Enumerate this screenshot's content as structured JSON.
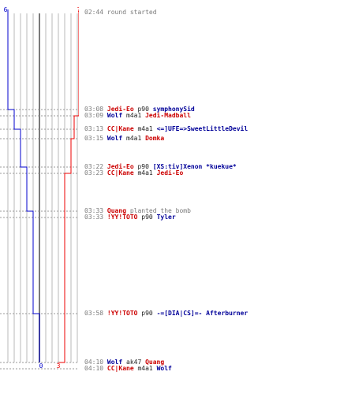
{
  "colors": {
    "red": "#ee0000",
    "blue": "#0000cc",
    "grid": "#b8b8b8",
    "center": "#7a7a7a",
    "dash": "#999999"
  },
  "start_scores": {
    "left": "6",
    "right": "7"
  },
  "end_scores": {
    "left": "0",
    "right": "3"
  },
  "events": [
    {
      "time": "02:44",
      "parts": [
        {
          "text": "round started",
          "cls": "c-gray"
        }
      ]
    },
    {
      "time": "03:08",
      "parts": [
        {
          "text": "Jedi-Eo",
          "cls": "c-red p"
        },
        {
          "text": "p90",
          "cls": "c-black"
        },
        {
          "text": "symphonySid",
          "cls": "c-blue p"
        }
      ]
    },
    {
      "time": "03:09",
      "parts": [
        {
          "text": "Wolf",
          "cls": "c-blue p"
        },
        {
          "text": "m4a1",
          "cls": "c-black"
        },
        {
          "text": "Jedi-Madball",
          "cls": "c-red p"
        }
      ]
    },
    {
      "time": "03:13",
      "parts": [
        {
          "text": "CC|Kane",
          "cls": "c-red p"
        },
        {
          "text": "m4a1",
          "cls": "c-black"
        },
        {
          "text": "<=]UFE=>SweetLittleDevil",
          "cls": "c-blue p"
        }
      ]
    },
    {
      "time": "03:15",
      "parts": [
        {
          "text": "Wolf",
          "cls": "c-blue p"
        },
        {
          "text": "m4a1",
          "cls": "c-black"
        },
        {
          "text": "Domka",
          "cls": "c-red p"
        }
      ]
    },
    {
      "time": "03:22",
      "parts": [
        {
          "text": "Jedi-Eo",
          "cls": "c-red p"
        },
        {
          "text": "p90",
          "cls": "c-black"
        },
        {
          "text": "[XS:tiv]Xenon *kuekue*",
          "cls": "c-blue p"
        }
      ]
    },
    {
      "time": "03:23",
      "parts": [
        {
          "text": "CC|Kane",
          "cls": "c-red p"
        },
        {
          "text": "m4a1",
          "cls": "c-black"
        },
        {
          "text": "Jedi-Eo",
          "cls": "c-red p"
        }
      ]
    },
    {
      "time": "03:33",
      "parts": [
        {
          "text": "Quang",
          "cls": "c-red p"
        },
        {
          "text": "planted the bomb",
          "cls": "c-gray"
        }
      ]
    },
    {
      "time": "03:33",
      "parts": [
        {
          "text": "!YY!TOTO",
          "cls": "c-red p"
        },
        {
          "text": "p90",
          "cls": "c-black"
        },
        {
          "text": "Tyler",
          "cls": "c-blue p"
        }
      ]
    },
    {
      "time": "03:58",
      "parts": [
        {
          "text": "!YY!TOTO",
          "cls": "c-red p"
        },
        {
          "text": "p90",
          "cls": "c-black"
        },
        {
          "text": "-=[DIA|CS]=- Afterburner",
          "cls": "c-blue p"
        }
      ]
    },
    {
      "time": "04:10",
      "parts": [
        {
          "text": "Wolf",
          "cls": "c-blue p"
        },
        {
          "text": "ak47",
          "cls": "c-black"
        },
        {
          "text": "Quang",
          "cls": "c-red p"
        }
      ]
    },
    {
      "time": "04:10",
      "parts": [
        {
          "text": "CC|Kane",
          "cls": "c-red p"
        },
        {
          "text": "m4a1",
          "cls": "c-black"
        },
        {
          "text": "Wolf",
          "cls": "c-blue p"
        }
      ]
    }
  ]
}
